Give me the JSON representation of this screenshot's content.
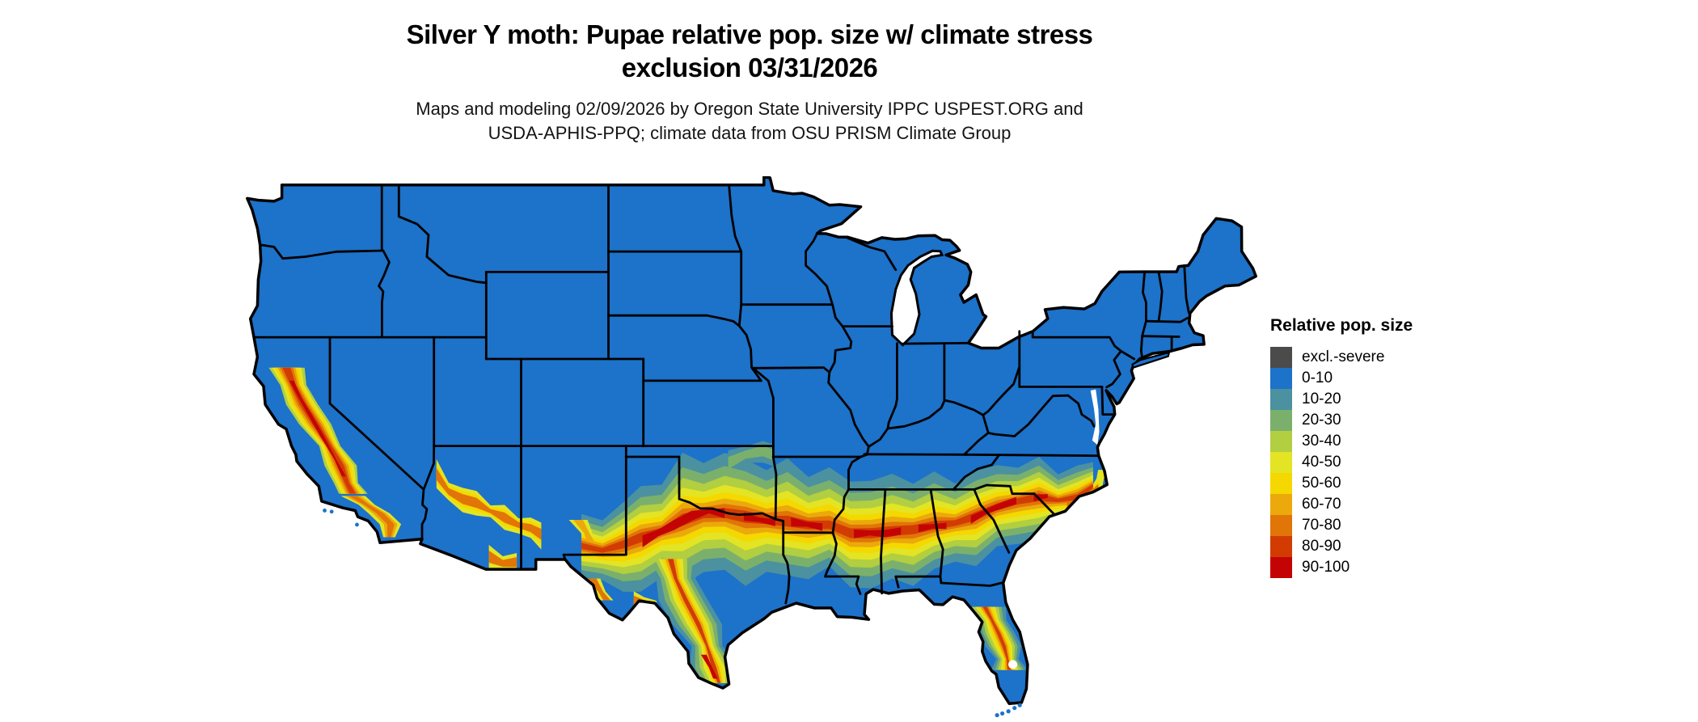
{
  "title": {
    "line1": "Silver Y moth: Pupae relative pop. size w/ climate stress",
    "line2": "exclusion 03/31/2026"
  },
  "subtitle": {
    "line1": "Maps and modeling 02/09/2026 by Oregon State University IPPC USPEST.ORG and",
    "line2": "USDA-APHIS-PPQ; climate data from OSU PRISM Climate Group"
  },
  "legend": {
    "title": "Relative pop. size",
    "items": [
      {
        "label": "excl.-severe",
        "color": "#4b4b4b"
      },
      {
        "label": "0-10",
        "color": "#1d72c9"
      },
      {
        "label": "10-20",
        "color": "#4b91a0"
      },
      {
        "label": "20-30",
        "color": "#7bb06c"
      },
      {
        "label": "30-40",
        "color": "#b2ce41"
      },
      {
        "label": "40-50",
        "color": "#e3e424"
      },
      {
        "label": "50-60",
        "color": "#f4d800"
      },
      {
        "label": "60-70",
        "color": "#eba90b"
      },
      {
        "label": "70-80",
        "color": "#e17507"
      },
      {
        "label": "80-90",
        "color": "#d23c03"
      },
      {
        "label": "90-100",
        "color": "#c40404"
      }
    ]
  },
  "map": {
    "region": "Contiguous United States",
    "land_base_color": "#1d72c9",
    "state_border_color": "#000000",
    "water_color": "#ffffff"
  }
}
